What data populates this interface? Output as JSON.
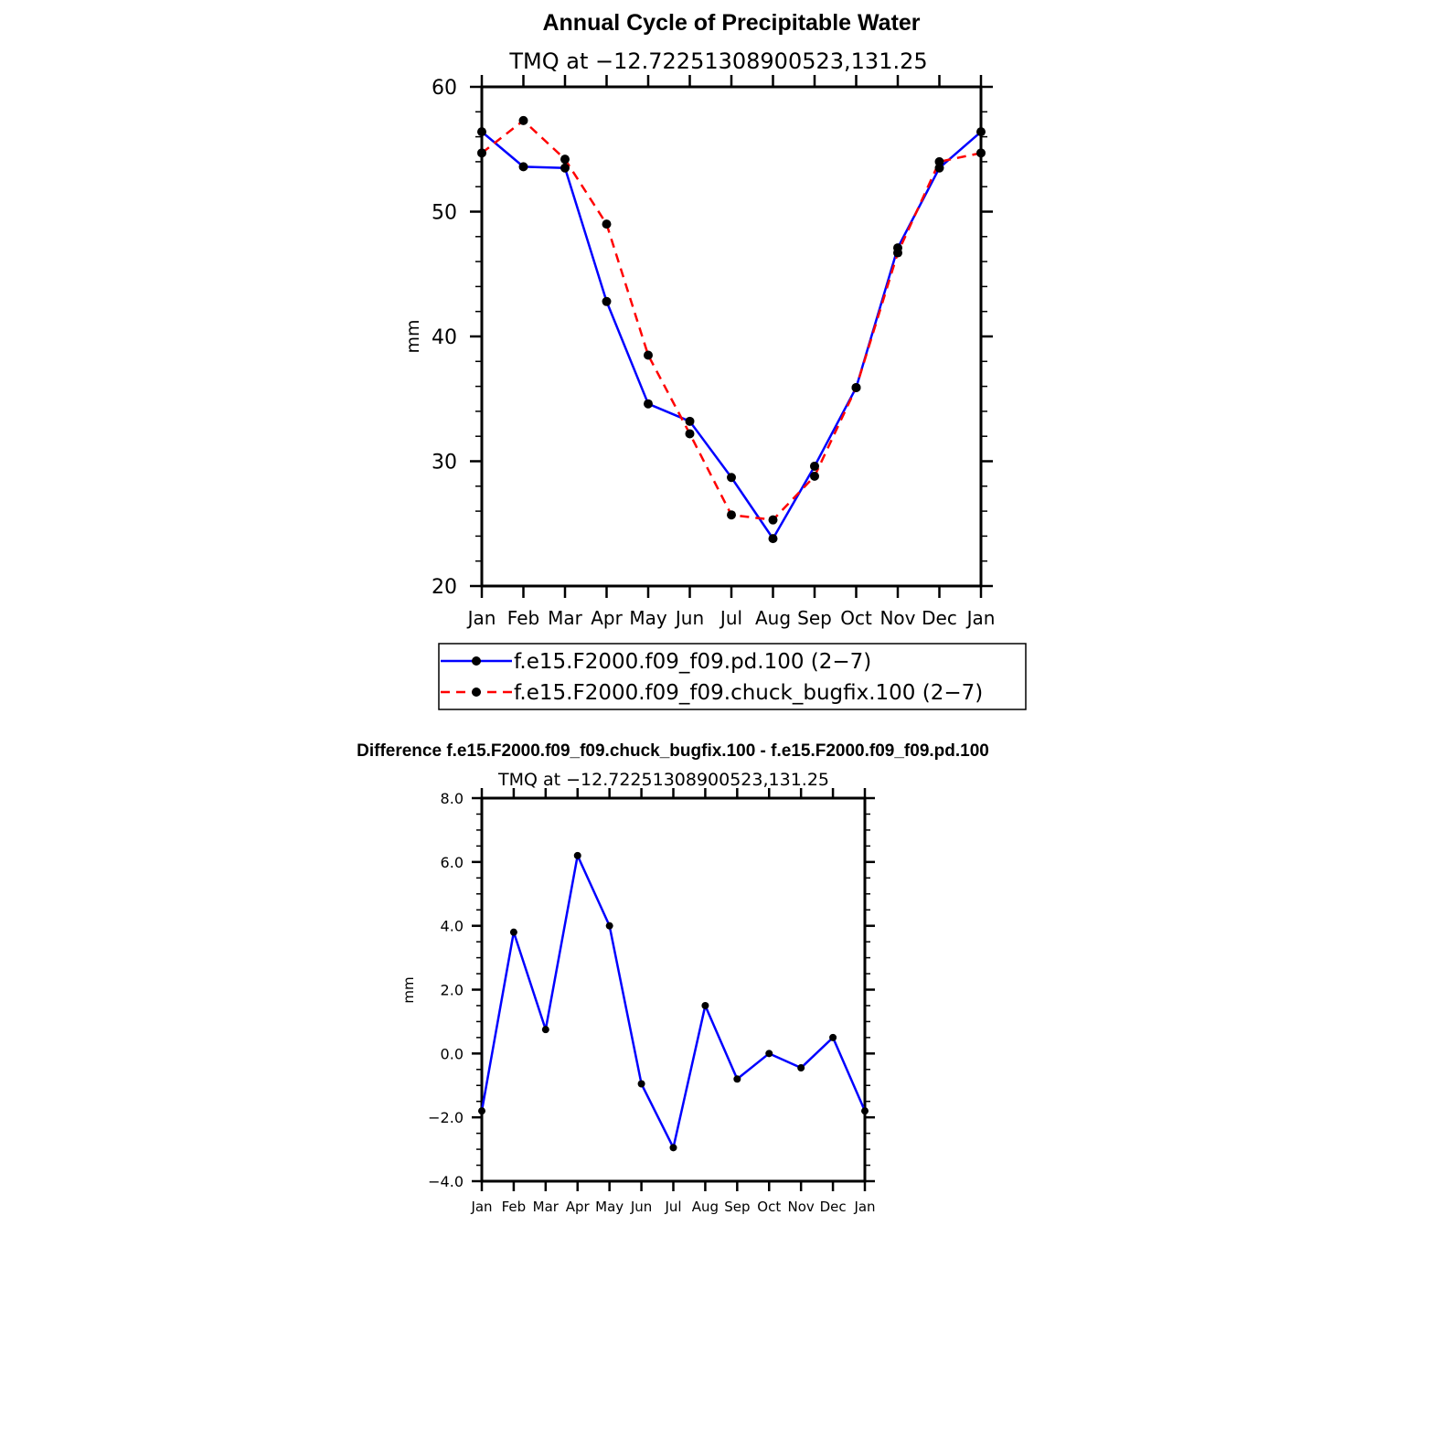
{
  "chart_data": [
    {
      "type": "line",
      "title": "Annual Cycle of Precipitable Water",
      "subtitle": "TMQ at −12.72251308900523,131.25",
      "ylabel": "mm",
      "xlabel": "",
      "categories": [
        "Jan",
        "Feb",
        "Mar",
        "Apr",
        "May",
        "Jun",
        "Jul",
        "Aug",
        "Sep",
        "Oct",
        "Nov",
        "Dec",
        "Jan"
      ],
      "ylim": [
        20,
        60
      ],
      "yticks": [
        "20",
        "30",
        "40",
        "50",
        "60"
      ],
      "legend_position": "bottom",
      "series": [
        {
          "name": "f.e15.F2000.f09_f09.pd.100 (2−7)",
          "color": "#0000ff",
          "dash": "solid",
          "values": [
            56.4,
            53.6,
            53.5,
            42.8,
            34.6,
            33.2,
            28.7,
            23.8,
            29.6,
            35.9,
            47.1,
            53.5,
            56.4
          ]
        },
        {
          "name": "f.e15.F2000.f09_f09.chuck_bugfix.100 (2−7)",
          "color": "#ff0000",
          "dash": "dashed",
          "values": [
            54.7,
            57.3,
            54.2,
            49.0,
            38.5,
            32.2,
            25.7,
            25.3,
            28.8,
            35.9,
            46.7,
            54.0,
            54.7
          ]
        }
      ]
    },
    {
      "type": "line",
      "title": "Difference f.e15.F2000.f09_f09.chuck_bugfix.100 - f.e15.F2000.f09_f09.pd.100",
      "subtitle": "TMQ at −12.72251308900523,131.25",
      "ylabel": "mm",
      "xlabel": "",
      "categories": [
        "Jan",
        "Feb",
        "Mar",
        "Apr",
        "May",
        "Jun",
        "Jul",
        "Aug",
        "Sep",
        "Oct",
        "Nov",
        "Dec",
        "Jan"
      ],
      "ylim": [
        -4,
        8
      ],
      "yticks": [
        "−4.0",
        "−2.0",
        "0.0",
        "2.0",
        "4.0",
        "6.0",
        "8.0"
      ],
      "series": [
        {
          "color": "#0000ff",
          "dash": "solid",
          "values": [
            -1.8,
            3.8,
            0.75,
            6.2,
            4.0,
            -0.95,
            -2.95,
            1.5,
            -0.8,
            0.0,
            -0.45,
            0.5,
            -1.8
          ]
        }
      ]
    }
  ]
}
